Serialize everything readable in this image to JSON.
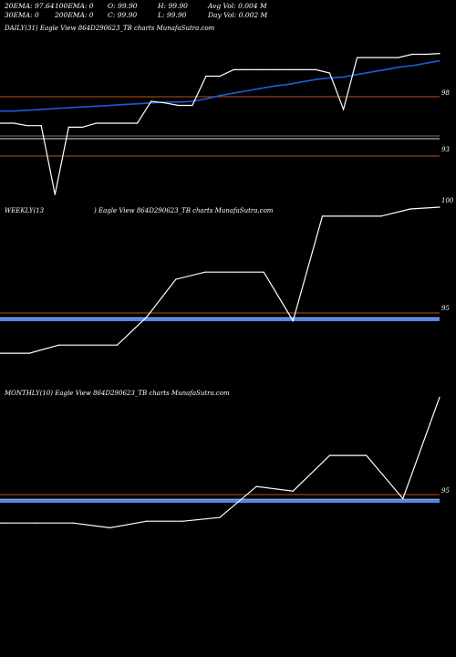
{
  "stats": {
    "ema20": "20EMA: 97.64",
    "ema100": "100EMA: 0",
    "open": "O: 99.90",
    "high": "H: 99.90",
    "avg_vol": "Avg Vol: 0.004  M",
    "ema30": "30EMA: 0",
    "ema200": "200EMA: 0",
    "close": "C: 99.90",
    "low": "L: 99.90",
    "day_vol": "Day Vol: 0.002  M"
  },
  "panels": {
    "daily_title": "DAILY(31) Eagle  View  864D290623_TB charts MunafaSutra.com",
    "weekly_title_left": "WEEKLY(13",
    "weekly_title_right": ") Eagle  View  864D290623_TB charts MunafaSutra.com",
    "monthly_title": "MONTHLY(10) Eagle  View  864D290623_TB charts MunafaSutra.com"
  },
  "colors": {
    "price": "#ffffff",
    "ema": "#1f5bd8",
    "level_line": "#b4551f",
    "weekly_band": "#4f86e8",
    "background": "#000000"
  },
  "chart_data": [
    {
      "type": "line",
      "panel": "daily",
      "ticks": [
        "98",
        "93",
        "100"
      ],
      "series": [
        {
          "values": [
            91.8,
            91.8,
            91.5,
            91.5,
            83.0,
            91.3,
            91.3,
            91.8,
            91.8,
            91.8,
            91.8,
            94.5,
            94.3,
            94.0,
            94.0,
            97.6,
            97.6,
            98.4,
            98.4,
            98.4,
            98.4,
            98.4,
            98.4,
            98.4,
            98.0,
            93.5,
            99.9,
            99.9,
            99.9,
            99.9,
            100.3,
            100.3,
            100.4
          ]
        },
        {
          "values": [
            93.3,
            93.3,
            93.4,
            93.5,
            93.6,
            93.7,
            93.8,
            93.9,
            94.0,
            94.1,
            94.2,
            94.3,
            94.4,
            94.4,
            94.5,
            94.8,
            95.2,
            95.5,
            95.8,
            96.1,
            96.4,
            96.6,
            96.9,
            97.2,
            97.4,
            97.5,
            97.8,
            98.1,
            98.4,
            98.7,
            98.9,
            99.2,
            99.5
          ]
        }
      ]
    },
    {
      "type": "line",
      "panel": "weekly",
      "ticks": [
        "95"
      ],
      "series": [
        {
          "values": [
            91.3,
            91.3,
            92.2,
            92.2,
            92.2,
            95.3,
            99.5,
            100.3,
            100.3,
            100.3,
            94.9,
            106.5,
            106.5,
            106.5,
            107.3,
            107.5
          ]
        }
      ]
    },
    {
      "type": "line",
      "panel": "monthly",
      "ticks": [
        "95"
      ],
      "series": [
        {
          "values": [
            91.6,
            91.6,
            91.6,
            91.1,
            91.8,
            91.8,
            92.2,
            95.5,
            95.0,
            98.8,
            98.8,
            94.2,
            105.0
          ]
        }
      ]
    }
  ]
}
